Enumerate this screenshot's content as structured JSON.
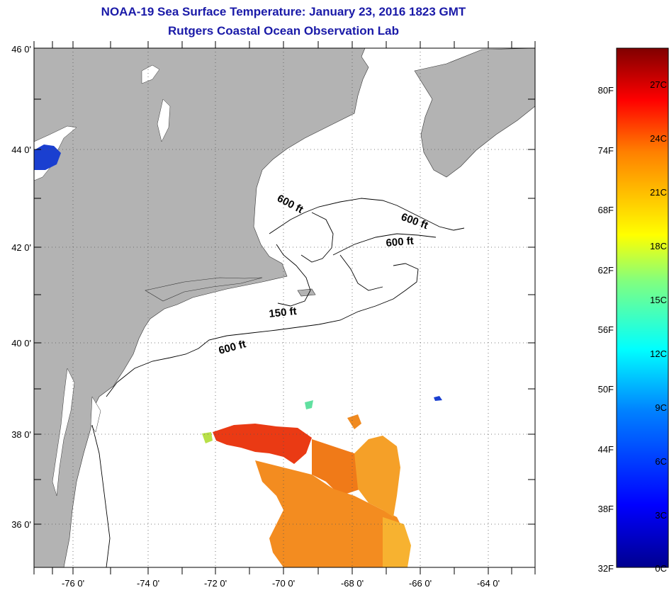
{
  "title": {
    "line1": "NOAA-19 Sea Surface Temperature:  January 23, 2016 1823 GMT",
    "line2": "Rutgers Coastal Ocean Observation Lab"
  },
  "axes": {
    "lat_labels": [
      "46 0'",
      "44 0'",
      "42 0'",
      "40 0'",
      "38 0'",
      "36 0'"
    ],
    "lon_labels": [
      "-76 0'",
      "-74 0'",
      "-72 0'",
      "-70 0'",
      "-68 0'",
      "-66 0'",
      "-64 0'"
    ]
  },
  "isobaths": [
    "600 ft",
    "600 ft",
    "600 ft",
    "150 ft",
    "600 ft"
  ],
  "colorbar": {
    "fahrenheit": [
      "80F",
      "74F",
      "68F",
      "62F",
      "56F",
      "50F",
      "44F",
      "38F",
      "32F"
    ],
    "celsius": [
      "27C",
      "24C",
      "21C",
      "18C",
      "15C",
      "12C",
      "9C",
      "6C",
      "3C",
      "0C"
    ]
  },
  "colors": {
    "land": "#b3b3b3",
    "title": "#1a1aa8",
    "warm_water": "#f07a18",
    "cold_water": "#1a3fd0"
  }
}
